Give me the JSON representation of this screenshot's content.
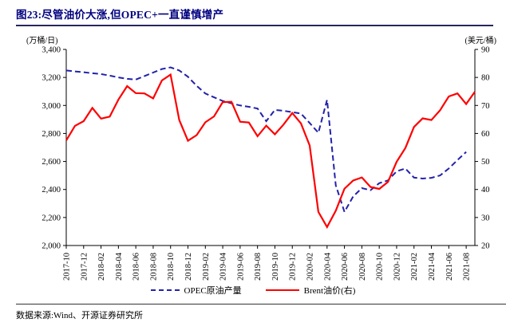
{
  "page": {
    "title": "图23:尽管油价大涨,但OPEC+一直谨慎增产",
    "source_note": "数据来源:Wind、开源证券研究所"
  },
  "chart_data": {
    "type": "line",
    "title": "图23:尽管油价大涨,但OPEC+一直谨慎增产",
    "grid": false,
    "legend_position": "bottom",
    "left_axis": {
      "label": "(万桶/日)",
      "min": 2000,
      "max": 3400,
      "step": 200
    },
    "right_axis": {
      "label": "(美元/桶)",
      "min": 20,
      "max": 90,
      "step": 10
    },
    "x_tick_every": 2,
    "x": [
      "2017-10",
      "2017-11",
      "2017-12",
      "2018-01",
      "2018-02",
      "2018-03",
      "2018-04",
      "2018-05",
      "2018-06",
      "2018-07",
      "2018-08",
      "2018-09",
      "2018-10",
      "2018-11",
      "2018-12",
      "2019-01",
      "2019-02",
      "2019-03",
      "2019-04",
      "2019-05",
      "2019-06",
      "2019-07",
      "2019-08",
      "2019-09",
      "2019-10",
      "2019-11",
      "2019-12",
      "2020-01",
      "2020-02",
      "2020-03",
      "2020-04",
      "2020-05",
      "2020-06",
      "2020-07",
      "2020-08",
      "2020-09",
      "2020-10",
      "2020-11",
      "2020-12",
      "2021-01",
      "2021-02",
      "2021-03",
      "2021-04",
      "2021-05",
      "2021-06",
      "2021-07",
      "2021-08",
      "2021-09"
    ],
    "series": [
      {
        "key": "opec-production",
        "name": "OPEC原油产量",
        "axis": "left",
        "color": "#2222aa",
        "style": "dashed",
        "width": 2,
        "values": [
          3250,
          3243,
          3237,
          3230,
          3224,
          3213,
          3200,
          3190,
          3185,
          3210,
          3235,
          3260,
          3272,
          3250,
          3205,
          3140,
          3085,
          3058,
          3032,
          3015,
          3000,
          2990,
          2978,
          2888,
          2968,
          2962,
          2952,
          2942,
          2875,
          2805,
          3040,
          2430,
          2240,
          2350,
          2410,
          2395,
          2445,
          2465,
          2530,
          2550,
          2485,
          2478,
          2483,
          2500,
          2550,
          2610,
          2668,
          null
        ]
      },
      {
        "key": "brent-price",
        "name": "Brent油价(右)",
        "axis": "right",
        "color": "#fe0000",
        "style": "solid",
        "width": 2.2,
        "values": [
          57.5,
          62.7,
          64.4,
          69.1,
          65.3,
          66.0,
          72.1,
          76.9,
          74.4,
          74.3,
          72.5,
          78.9,
          81.0,
          64.8,
          57.4,
          59.4,
          64.0,
          66.1,
          71.2,
          71.3,
          64.2,
          63.9,
          59.0,
          62.8,
          59.7,
          63.2,
          67.3,
          63.6,
          55.7,
          32.0,
          26.6,
          32.4,
          40.3,
          43.2,
          44.3,
          40.9,
          40.2,
          42.7,
          49.9,
          54.8,
          62.3,
          65.4,
          64.8,
          68.3,
          73.2,
          74.3,
          70.5,
          74.9
        ]
      }
    ]
  }
}
